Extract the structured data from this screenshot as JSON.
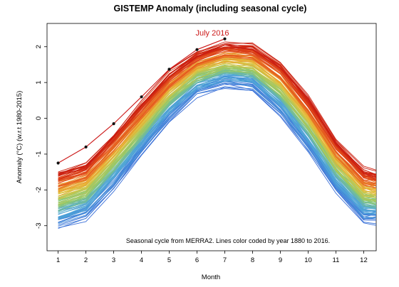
{
  "chart_data": {
    "type": "line",
    "title": "GISTEMP Anomaly (including seasonal cycle)",
    "xlabel": "Month",
    "ylabel": "Anomaly (°C) (w.r.t 1980-2015)",
    "xlim": [
      0.6,
      12.45
    ],
    "ylim": [
      -3.7,
      2.65
    ],
    "x_ticks": [
      1,
      2,
      3,
      4,
      5,
      6,
      7,
      8,
      9,
      10,
      11,
      12
    ],
    "y_ticks": [
      -3,
      -2,
      -1,
      0,
      1,
      2
    ],
    "grid": false,
    "annotation": "Seasonal cycle from MERRA2. Lines color coded by year 1880 to 2016.",
    "color_scale": {
      "start_year": 1880,
      "end_year": 2016,
      "colors": [
        "#3a6fd8",
        "#4fa8d8",
        "#8cc96e",
        "#e8c23a",
        "#e85a1f",
        "#c81a10"
      ]
    },
    "band_cold": {
      "name": "1880",
      "months": [
        1,
        2,
        3,
        4,
        5,
        6,
        7,
        8,
        9,
        10,
        11,
        12,
        12.45
      ],
      "values": [
        -3.0,
        -2.75,
        -1.9,
        -0.95,
        0.0,
        0.7,
        0.95,
        0.85,
        0.15,
        -0.85,
        -2.0,
        -2.85,
        -2.85
      ]
    },
    "band_warm": {
      "name": "2015",
      "months": [
        1,
        2,
        3,
        4,
        5,
        6,
        7,
        8,
        9,
        10,
        11,
        12,
        12.45
      ],
      "values": [
        -1.55,
        -1.3,
        -0.5,
        0.4,
        1.25,
        1.8,
        2.05,
        2.0,
        1.5,
        0.55,
        -0.65,
        -1.45,
        -1.55
      ]
    },
    "highlight": {
      "label": "July 2016",
      "color": "#cc1a1a",
      "months": [
        1,
        2,
        3,
        4,
        5,
        6,
        7
      ],
      "values": [
        -1.25,
        -0.8,
        -0.15,
        0.6,
        1.37,
        1.92,
        2.22
      ]
    }
  }
}
